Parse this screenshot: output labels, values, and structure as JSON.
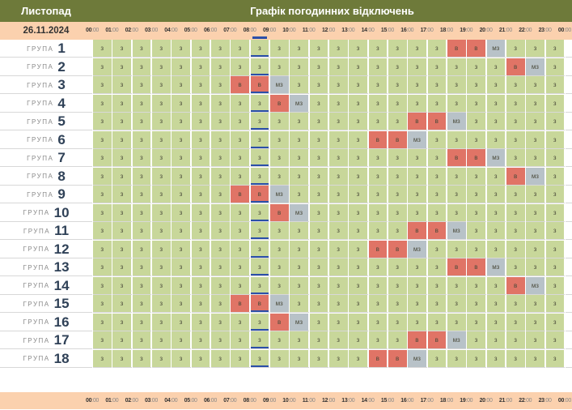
{
  "header": {
    "month": "Листопад",
    "title": "Графік погодинних відключень",
    "date": "26.11.2024"
  },
  "hours": [
    "00",
    "01",
    "02",
    "03",
    "04",
    "05",
    "06",
    "07",
    "08",
    "09",
    "10",
    "11",
    "12",
    "13",
    "14",
    "15",
    "16",
    "17",
    "18",
    "19",
    "20",
    "21",
    "22",
    "23",
    "00"
  ],
  "minutes_label": "00",
  "group_word": "ГРУПА",
  "current_hour_index": 8,
  "status_labels": {
    "e": "з",
    "v": "в",
    "m": "мз"
  },
  "colors": {
    "header_bg": "#6e7a3a",
    "hour_row_bg": "#fbd1ae",
    "on": "#c8d79a",
    "off": "#e07466",
    "maybe": "#b8c2c8",
    "now": "#2b4fa8"
  },
  "groups": [
    {
      "number": "1",
      "cells": [
        "e",
        "e",
        "e",
        "e",
        "e",
        "e",
        "e",
        "e",
        "e",
        "e",
        "e",
        "e",
        "e",
        "e",
        "e",
        "e",
        "e",
        "e",
        "v",
        "v",
        "m",
        "e",
        "e",
        "e"
      ]
    },
    {
      "number": "2",
      "cells": [
        "e",
        "e",
        "e",
        "e",
        "e",
        "e",
        "e",
        "e",
        "e",
        "e",
        "e",
        "e",
        "e",
        "e",
        "e",
        "e",
        "e",
        "e",
        "e",
        "e",
        "e",
        "v",
        "m",
        "e"
      ]
    },
    {
      "number": "3",
      "cells": [
        "e",
        "e",
        "e",
        "e",
        "e",
        "e",
        "e",
        "v",
        "v",
        "m",
        "e",
        "e",
        "e",
        "e",
        "e",
        "e",
        "e",
        "e",
        "e",
        "e",
        "e",
        "e",
        "e",
        "e"
      ]
    },
    {
      "number": "4",
      "cells": [
        "e",
        "e",
        "e",
        "e",
        "e",
        "e",
        "e",
        "e",
        "e",
        "v",
        "m",
        "e",
        "e",
        "e",
        "e",
        "e",
        "e",
        "e",
        "e",
        "e",
        "e",
        "e",
        "e",
        "e"
      ]
    },
    {
      "number": "5",
      "cells": [
        "e",
        "e",
        "e",
        "e",
        "e",
        "e",
        "e",
        "e",
        "e",
        "e",
        "e",
        "e",
        "e",
        "e",
        "e",
        "e",
        "v",
        "v",
        "m",
        "e",
        "e",
        "e",
        "e",
        "e"
      ]
    },
    {
      "number": "6",
      "cells": [
        "e",
        "e",
        "e",
        "e",
        "e",
        "e",
        "e",
        "e",
        "e",
        "e",
        "e",
        "e",
        "e",
        "e",
        "v",
        "v",
        "m",
        "e",
        "e",
        "e",
        "e",
        "e",
        "e",
        "e"
      ]
    },
    {
      "number": "7",
      "cells": [
        "e",
        "e",
        "e",
        "e",
        "e",
        "e",
        "e",
        "e",
        "e",
        "e",
        "e",
        "e",
        "e",
        "e",
        "e",
        "e",
        "e",
        "e",
        "v",
        "v",
        "m",
        "e",
        "e",
        "e"
      ]
    },
    {
      "number": "8",
      "cells": [
        "e",
        "e",
        "e",
        "e",
        "e",
        "e",
        "e",
        "e",
        "e",
        "e",
        "e",
        "e",
        "e",
        "e",
        "e",
        "e",
        "e",
        "e",
        "e",
        "e",
        "e",
        "v",
        "m",
        "e"
      ]
    },
    {
      "number": "9",
      "cells": [
        "e",
        "e",
        "e",
        "e",
        "e",
        "e",
        "e",
        "v",
        "v",
        "m",
        "e",
        "e",
        "e",
        "e",
        "e",
        "e",
        "e",
        "e",
        "e",
        "e",
        "e",
        "e",
        "e",
        "e"
      ]
    },
    {
      "number": "10",
      "cells": [
        "e",
        "e",
        "e",
        "e",
        "e",
        "e",
        "e",
        "e",
        "e",
        "v",
        "m",
        "e",
        "e",
        "e",
        "e",
        "e",
        "e",
        "e",
        "e",
        "e",
        "e",
        "e",
        "e",
        "e"
      ]
    },
    {
      "number": "11",
      "cells": [
        "e",
        "e",
        "e",
        "e",
        "e",
        "e",
        "e",
        "e",
        "e",
        "e",
        "e",
        "e",
        "e",
        "e",
        "e",
        "e",
        "v",
        "v",
        "m",
        "e",
        "e",
        "e",
        "e",
        "e"
      ]
    },
    {
      "number": "12",
      "cells": [
        "e",
        "e",
        "e",
        "e",
        "e",
        "e",
        "e",
        "e",
        "e",
        "e",
        "e",
        "e",
        "e",
        "e",
        "v",
        "v",
        "m",
        "e",
        "e",
        "e",
        "e",
        "e",
        "e",
        "e"
      ]
    },
    {
      "number": "13",
      "cells": [
        "e",
        "e",
        "e",
        "e",
        "e",
        "e",
        "e",
        "e",
        "e",
        "e",
        "e",
        "e",
        "e",
        "e",
        "e",
        "e",
        "e",
        "e",
        "v",
        "v",
        "m",
        "e",
        "e",
        "e"
      ]
    },
    {
      "number": "14",
      "cells": [
        "e",
        "e",
        "e",
        "e",
        "e",
        "e",
        "e",
        "e",
        "e",
        "e",
        "e",
        "e",
        "e",
        "e",
        "e",
        "e",
        "e",
        "e",
        "e",
        "e",
        "e",
        "v",
        "m",
        "e"
      ]
    },
    {
      "number": "15",
      "cells": [
        "e",
        "e",
        "e",
        "e",
        "e",
        "e",
        "e",
        "v",
        "v",
        "m",
        "e",
        "e",
        "e",
        "e",
        "e",
        "e",
        "e",
        "e",
        "e",
        "e",
        "e",
        "e",
        "e",
        "e"
      ]
    },
    {
      "number": "16",
      "cells": [
        "e",
        "e",
        "e",
        "e",
        "e",
        "e",
        "e",
        "e",
        "e",
        "v",
        "m",
        "e",
        "e",
        "e",
        "e",
        "e",
        "e",
        "e",
        "e",
        "e",
        "e",
        "e",
        "e",
        "e"
      ]
    },
    {
      "number": "17",
      "cells": [
        "e",
        "e",
        "e",
        "e",
        "e",
        "e",
        "e",
        "e",
        "e",
        "e",
        "e",
        "e",
        "e",
        "e",
        "e",
        "e",
        "v",
        "v",
        "m",
        "e",
        "e",
        "e",
        "e",
        "e"
      ]
    },
    {
      "number": "18",
      "cells": [
        "e",
        "e",
        "e",
        "e",
        "e",
        "e",
        "e",
        "e",
        "e",
        "e",
        "e",
        "e",
        "e",
        "e",
        "v",
        "v",
        "m",
        "e",
        "e",
        "e",
        "e",
        "e",
        "e",
        "e"
      ]
    }
  ]
}
